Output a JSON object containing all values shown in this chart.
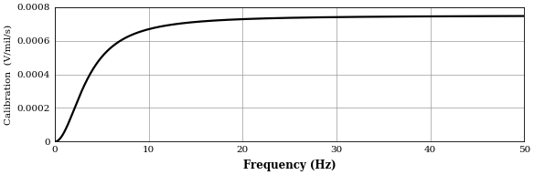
{
  "title": "",
  "xlabel": "Frequency (Hz)",
  "ylabel": "Calibration  (V/mil/s)",
  "xlim": [
    0,
    50
  ],
  "ylim": [
    0,
    0.0008
  ],
  "xticks": [
    0,
    10,
    20,
    30,
    40,
    50
  ],
  "yticks": [
    0,
    0.0002,
    0.0004,
    0.0006,
    0.0008
  ],
  "ytick_labels": [
    "0",
    "0.0002",
    "0.0004",
    "0.0006",
    "0.0008"
  ],
  "fn": 3.5,
  "sensitivity": 0.00075,
  "line_color": "#000000",
  "line_width": 1.6,
  "grid_color": "#999999",
  "background_color": "#ffffff",
  "xlabel_fontsize": 8.5,
  "ylabel_fontsize": 7.5,
  "tick_fontsize": 7.5,
  "font_family": "DejaVu Serif"
}
